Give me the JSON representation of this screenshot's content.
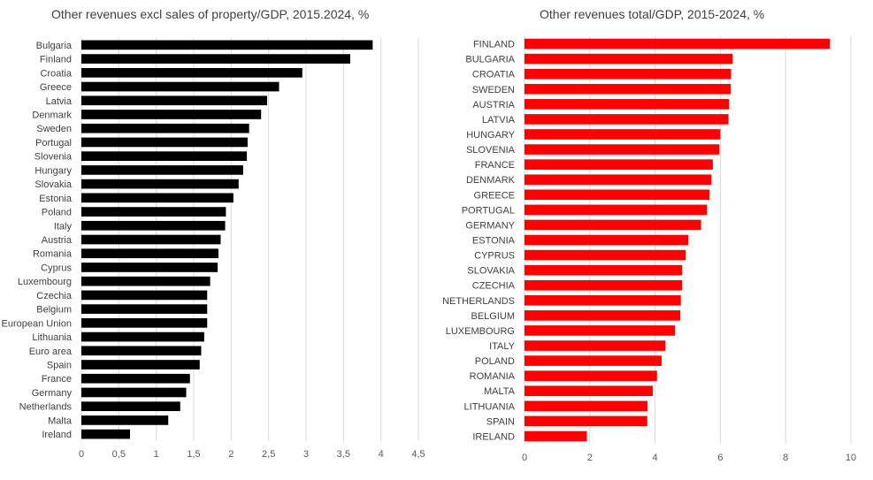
{
  "chart_data": [
    {
      "type": "bar",
      "orientation": "horizontal",
      "title": "Other revenues excl sales of property/GDP, 2015.2024, %",
      "categories": [
        "Bulgaria",
        "Finland",
        "Croatia",
        "Greece",
        "Latvia",
        "Denmark",
        "Sweden",
        "Portugal",
        "Slovenia",
        "Hungary",
        "Slovakia",
        "Estonia",
        "Poland",
        "Italy",
        "Austria",
        "Romania",
        "Cyprus",
        "Luxembourg",
        "Czechia",
        "Belgium",
        "European Union",
        "Lithuania",
        "Euro area",
        "Spain",
        "France",
        "Germany",
        "Netherlands",
        "Malta",
        "Ireland"
      ],
      "values": [
        3.89,
        3.59,
        2.95,
        2.64,
        2.48,
        2.4,
        2.24,
        2.22,
        2.21,
        2.16,
        2.1,
        2.03,
        1.93,
        1.92,
        1.86,
        1.83,
        1.82,
        1.72,
        1.68,
        1.68,
        1.68,
        1.64,
        1.6,
        1.58,
        1.45,
        1.4,
        1.32,
        1.16,
        0.65
      ],
      "xlim": [
        0,
        4.5
      ],
      "ticks": [
        "0",
        "0,5",
        "1",
        "1,5",
        "2",
        "2,5",
        "3",
        "3,5",
        "4",
        "4,5"
      ],
      "tick_values": [
        0,
        0.5,
        1,
        1.5,
        2,
        2.5,
        3,
        3.5,
        4,
        4.5
      ],
      "bar_color": "#000000",
      "grid": true
    },
    {
      "type": "bar",
      "orientation": "horizontal",
      "title": "Other revenues total/GDP, 2015-2024, %",
      "categories": [
        "FINLAND",
        "BULGARIA",
        "CROATIA",
        "SWEDEN",
        "AUSTRIA",
        "LATVIA",
        "HUNGARY",
        "SLOVENIA",
        "FRANCE",
        "DENMARK",
        "GREECE",
        "PORTUGAL",
        "GERMANY",
        "ESTONIA",
        "CYPRUS",
        "SLOVAKIA",
        "CZECHIA",
        "NETHERLANDS",
        "BELGIUM",
        "LUXEMBOURG",
        "ITALY",
        "POLAND",
        "ROMANIA",
        "MALTA",
        "LITHUANIA",
        "SPAIN",
        "IRELAND"
      ],
      "values": [
        9.36,
        6.38,
        6.33,
        6.32,
        6.27,
        6.25,
        6.0,
        5.97,
        5.77,
        5.73,
        5.67,
        5.59,
        5.41,
        5.02,
        4.94,
        4.83,
        4.83,
        4.79,
        4.77,
        4.61,
        4.32,
        4.2,
        4.06,
        3.93,
        3.77,
        3.76,
        1.91
      ],
      "xlim": [
        0,
        10
      ],
      "ticks": [
        "0",
        "2",
        "4",
        "6",
        "8",
        "10"
      ],
      "tick_values": [
        0,
        2,
        4,
        6,
        8,
        10
      ],
      "bar_color": "#ff0000",
      "grid": true
    }
  ]
}
